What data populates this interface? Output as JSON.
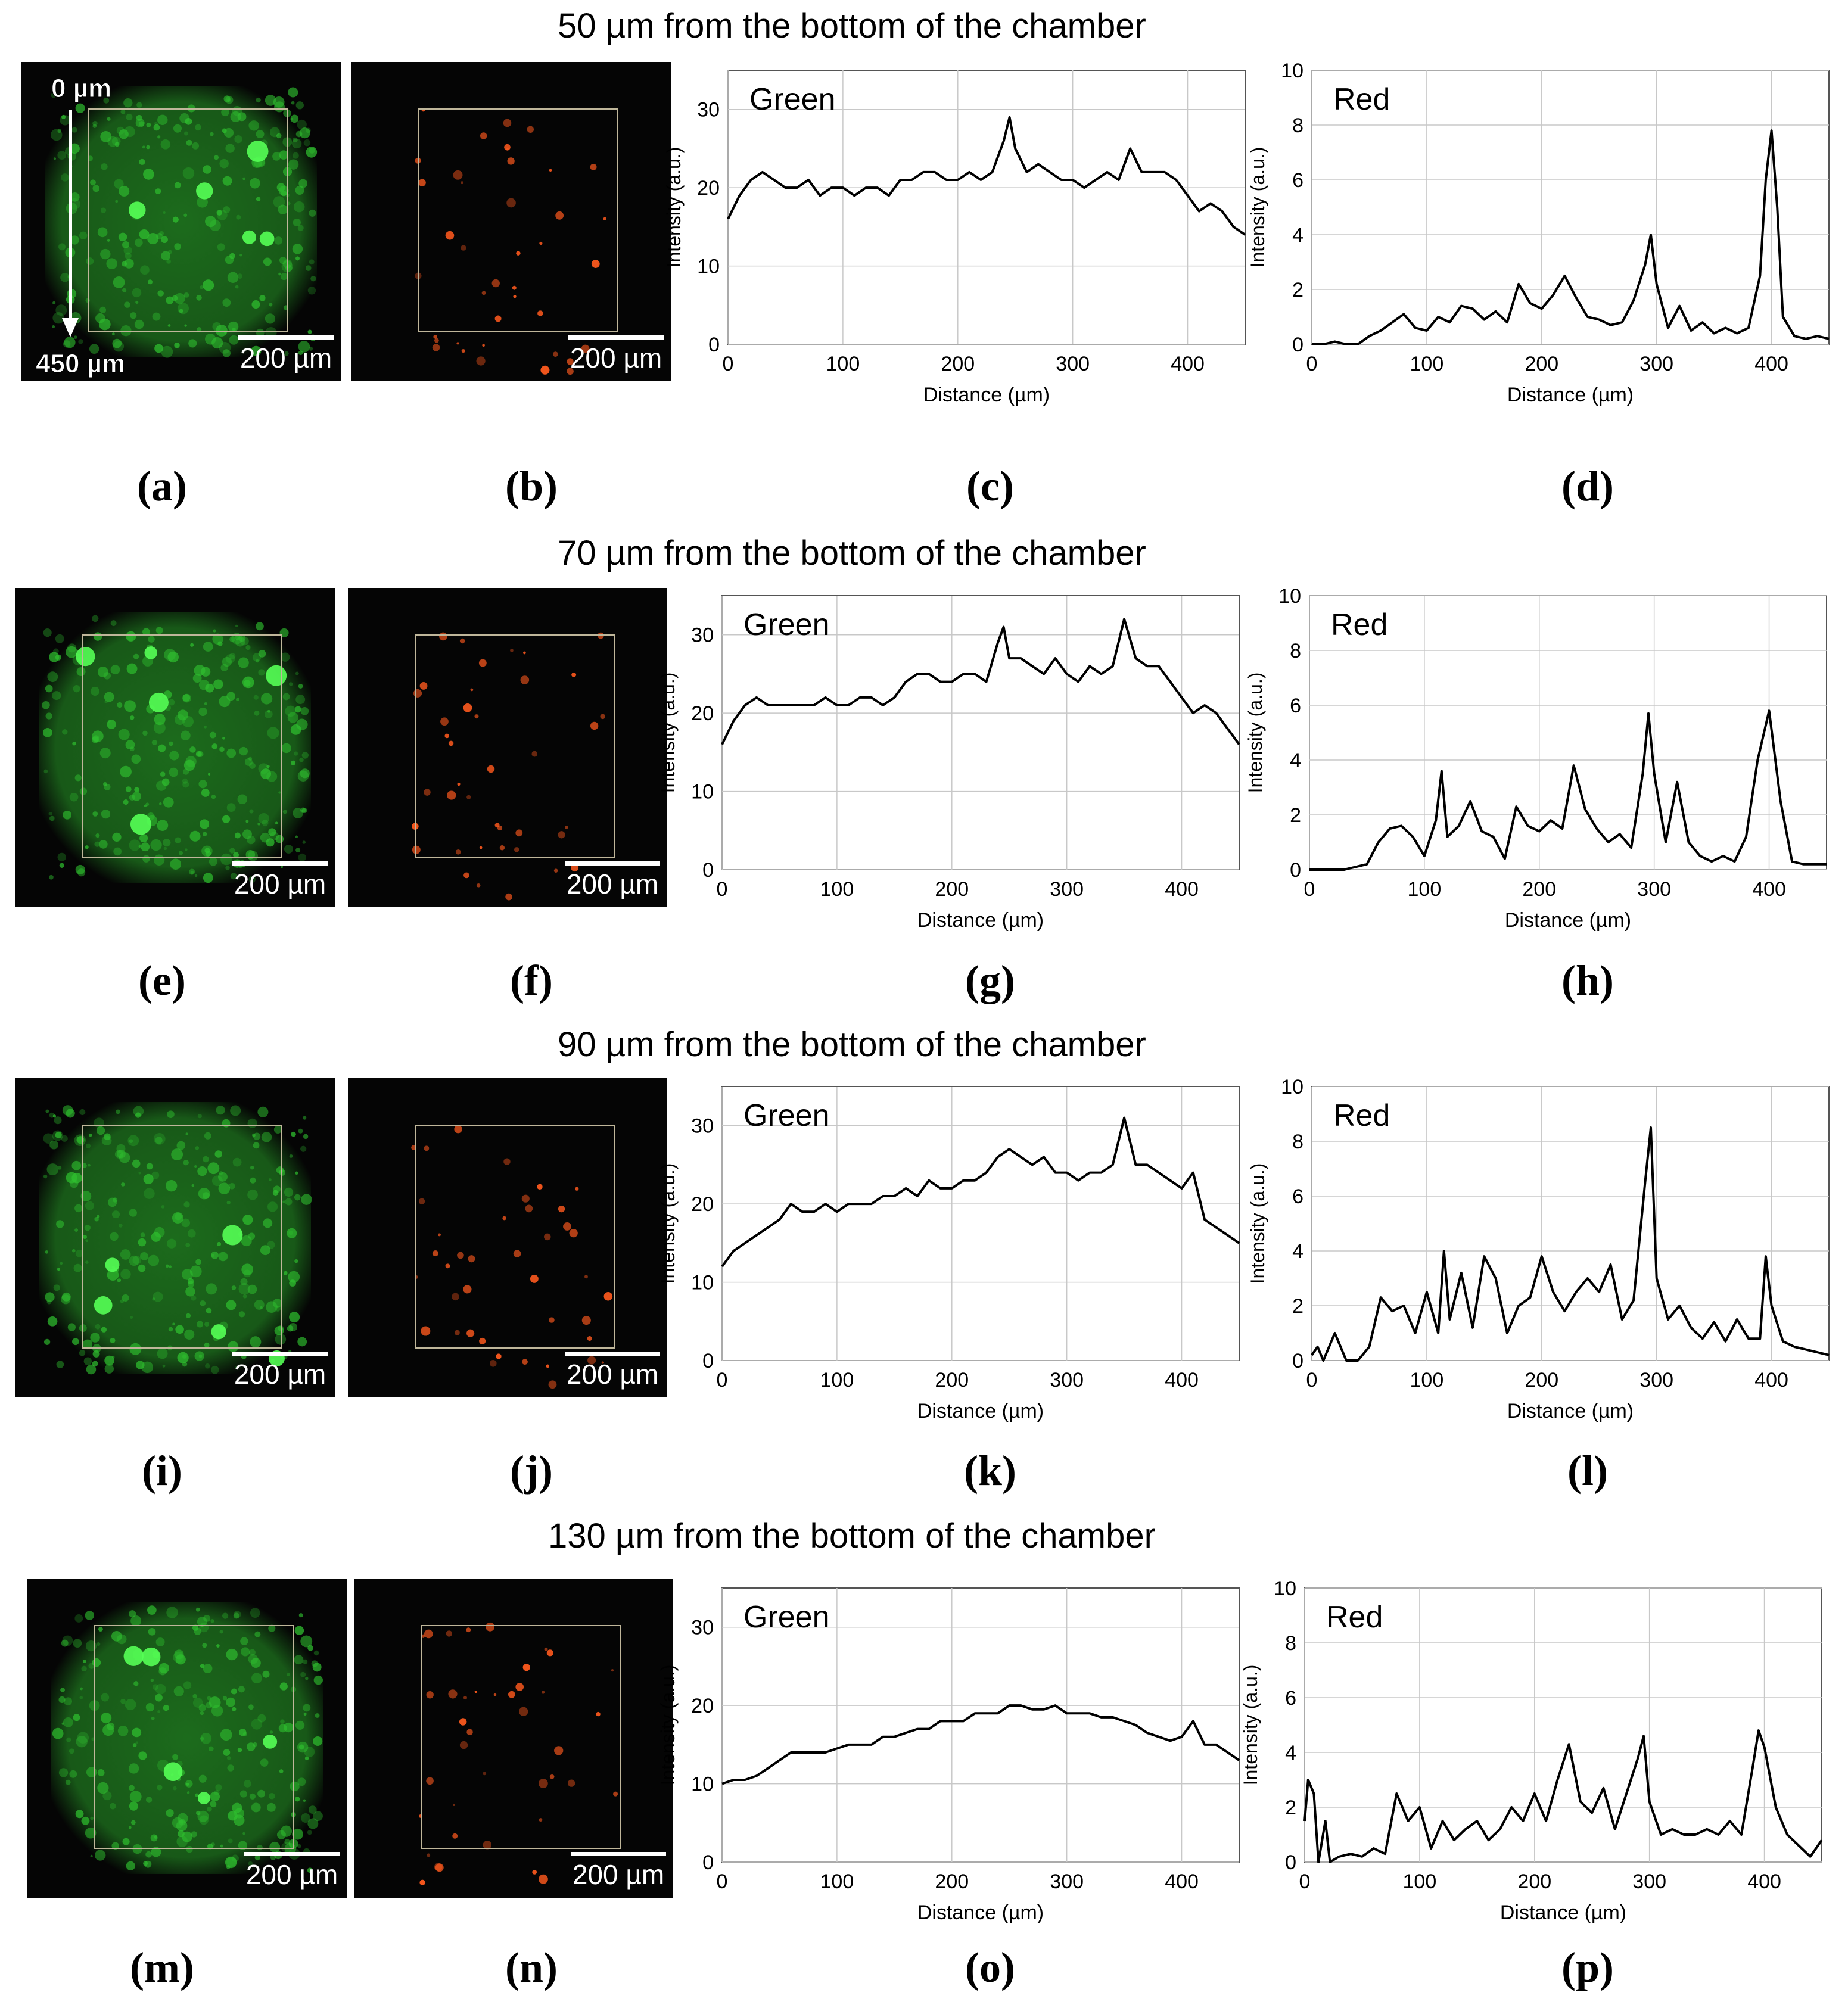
{
  "figure": {
    "rows": [
      {
        "title": "50 µm from the bottom of the chamber",
        "labels": [
          "(a)",
          "(b)",
          "(c)",
          "(d)"
        ],
        "scale_green": "200 µm",
        "scale_red": "200 µm",
        "depth_top": "0 µm",
        "depth_bottom": "450 µm"
      },
      {
        "title": "70 µm from the bottom of the chamber",
        "labels": [
          "(e)",
          "(f)",
          "(g)",
          "(h)"
        ],
        "scale_green": "200 µm",
        "scale_red": "200 µm"
      },
      {
        "title": "90 µm from the bottom of the chamber",
        "labels": [
          "(i)",
          "(j)",
          "(k)",
          "(l)"
        ],
        "scale_green": "200 µm",
        "scale_red": "200 µm"
      },
      {
        "title": "130 µm from the bottom of the chamber",
        "labels": [
          "(m)",
          "(n)",
          "(o)",
          "(p)"
        ],
        "scale_green": "200 µm",
        "scale_red": "200 µm"
      }
    ]
  },
  "colors": {
    "green_channel": "#2fbf2f",
    "red_channel": "#ff5a1e",
    "roi_box": "#bfb69a",
    "trace": "#000000",
    "grid": "#c8c8c8"
  },
  "chart_data": [
    {
      "panel": "(c)",
      "type": "line",
      "title": "Green",
      "xlabel": "Distance (µm)",
      "ylabel": "Intensity (a.u.)",
      "xlim": [
        0,
        450
      ],
      "ylim": [
        0,
        35
      ],
      "xticks": [
        0,
        100,
        200,
        300,
        400
      ],
      "yticks": [
        0,
        10,
        20,
        30
      ],
      "grid": true,
      "series": [
        {
          "name": "Green",
          "x": [
            0,
            10,
            20,
            30,
            40,
            50,
            60,
            70,
            80,
            90,
            100,
            110,
            120,
            130,
            140,
            150,
            160,
            170,
            180,
            190,
            200,
            210,
            220,
            230,
            240,
            245,
            250,
            260,
            270,
            280,
            290,
            300,
            310,
            320,
            330,
            340,
            350,
            360,
            370,
            380,
            390,
            400,
            410,
            420,
            430,
            440,
            450
          ],
          "values": [
            16,
            19,
            21,
            22,
            21,
            20,
            20,
            21,
            19,
            20,
            20,
            19,
            20,
            20,
            19,
            21,
            21,
            22,
            22,
            21,
            21,
            22,
            21,
            22,
            26,
            29,
            25,
            22,
            23,
            22,
            21,
            21,
            20,
            21,
            22,
            21,
            25,
            22,
            22,
            22,
            21,
            19,
            17,
            18,
            17,
            15,
            14
          ]
        }
      ]
    },
    {
      "panel": "(d)",
      "type": "line",
      "title": "Red",
      "xlabel": "Distance (µm)",
      "ylabel": "Intensity (a.u.)",
      "xlim": [
        0,
        450
      ],
      "ylim": [
        0,
        10
      ],
      "xticks": [
        0,
        100,
        200,
        300,
        400
      ],
      "yticks": [
        0,
        2,
        4,
        6,
        8,
        10
      ],
      "grid": true,
      "series": [
        {
          "name": "Red",
          "x": [
            0,
            10,
            20,
            30,
            40,
            50,
            60,
            70,
            80,
            90,
            100,
            110,
            120,
            130,
            140,
            150,
            160,
            170,
            180,
            190,
            200,
            210,
            220,
            230,
            240,
            250,
            260,
            270,
            280,
            290,
            295,
            300,
            310,
            320,
            330,
            340,
            350,
            360,
            370,
            380,
            390,
            395,
            400,
            405,
            410,
            420,
            430,
            440,
            450
          ],
          "values": [
            0,
            0,
            0.1,
            0,
            0,
            0.3,
            0.5,
            0.8,
            1.1,
            0.6,
            0.5,
            1,
            0.8,
            1.4,
            1.3,
            0.9,
            1.2,
            0.8,
            2.2,
            1.5,
            1.3,
            1.8,
            2.5,
            1.7,
            1,
            0.9,
            0.7,
            0.8,
            1.6,
            2.9,
            4,
            2.2,
            0.6,
            1.4,
            0.5,
            0.8,
            0.4,
            0.6,
            0.4,
            0.6,
            2.5,
            6,
            7.8,
            5,
            1,
            0.3,
            0.2,
            0.3,
            0.2
          ]
        }
      ]
    },
    {
      "panel": "(g)",
      "type": "line",
      "title": "Green",
      "xlabel": "Distance (µm)",
      "ylabel": "Intensity (a.u.)",
      "xlim": [
        0,
        450
      ],
      "ylim": [
        0,
        35
      ],
      "xticks": [
        0,
        100,
        200,
        300,
        400
      ],
      "yticks": [
        0,
        10,
        20,
        30
      ],
      "grid": true,
      "series": [
        {
          "name": "Green",
          "x": [
            0,
            10,
            20,
            30,
            40,
            50,
            60,
            70,
            80,
            90,
            100,
            110,
            120,
            130,
            140,
            150,
            160,
            170,
            180,
            190,
            200,
            210,
            220,
            230,
            240,
            245,
            250,
            260,
            270,
            280,
            290,
            300,
            310,
            320,
            330,
            340,
            350,
            360,
            370,
            380,
            390,
            400,
            410,
            420,
            430,
            440,
            450
          ],
          "values": [
            16,
            19,
            21,
            22,
            21,
            21,
            21,
            21,
            21,
            22,
            21,
            21,
            22,
            22,
            21,
            22,
            24,
            25,
            25,
            24,
            24,
            25,
            25,
            24,
            29,
            31,
            27,
            27,
            26,
            25,
            27,
            25,
            24,
            26,
            25,
            26,
            32,
            27,
            26,
            26,
            24,
            22,
            20,
            21,
            20,
            18,
            16
          ]
        }
      ]
    },
    {
      "panel": "(h)",
      "type": "line",
      "title": "Red",
      "xlabel": "Distance (µm)",
      "ylabel": "Intensity (a.u.)",
      "xlim": [
        0,
        450
      ],
      "ylim": [
        0,
        10
      ],
      "xticks": [
        0,
        100,
        200,
        300,
        400
      ],
      "yticks": [
        0,
        2,
        4,
        6,
        8,
        10
      ],
      "grid": true,
      "series": [
        {
          "name": "Red",
          "x": [
            0,
            10,
            20,
            30,
            40,
            50,
            60,
            70,
            80,
            90,
            100,
            110,
            115,
            120,
            130,
            140,
            150,
            160,
            170,
            180,
            190,
            200,
            210,
            220,
            230,
            240,
            250,
            260,
            270,
            280,
            290,
            295,
            300,
            310,
            320,
            330,
            340,
            350,
            360,
            370,
            380,
            390,
            400,
            410,
            420,
            430,
            440,
            450
          ],
          "values": [
            0,
            0,
            0,
            0,
            0.1,
            0.2,
            1,
            1.5,
            1.6,
            1.2,
            0.5,
            1.8,
            3.6,
            1.2,
            1.6,
            2.5,
            1.4,
            1.2,
            0.4,
            2.3,
            1.6,
            1.4,
            1.8,
            1.5,
            3.8,
            2.2,
            1.5,
            1,
            1.3,
            0.8,
            3.5,
            5.7,
            3.5,
            1,
            3.2,
            1,
            0.5,
            0.3,
            0.5,
            0.3,
            1.2,
            4,
            5.8,
            2.5,
            0.3,
            0.2,
            0.2,
            0.2
          ]
        }
      ]
    },
    {
      "panel": "(k)",
      "type": "line",
      "title": "Green",
      "xlabel": "Distance (µm)",
      "ylabel": "Intensity (a.u.)",
      "xlim": [
        0,
        450
      ],
      "ylim": [
        0,
        35
      ],
      "xticks": [
        0,
        100,
        200,
        300,
        400
      ],
      "yticks": [
        0,
        10,
        20,
        30
      ],
      "grid": true,
      "series": [
        {
          "name": "Green",
          "x": [
            0,
            10,
            20,
            30,
            40,
            50,
            60,
            70,
            80,
            90,
            100,
            110,
            120,
            130,
            140,
            150,
            160,
            170,
            180,
            190,
            200,
            210,
            220,
            230,
            240,
            250,
            260,
            270,
            280,
            290,
            300,
            310,
            320,
            330,
            340,
            350,
            360,
            370,
            380,
            390,
            400,
            410,
            420,
            430,
            440,
            450
          ],
          "values": [
            12,
            14,
            15,
            16,
            17,
            18,
            20,
            19,
            19,
            20,
            19,
            20,
            20,
            20,
            21,
            21,
            22,
            21,
            23,
            22,
            22,
            23,
            23,
            24,
            26,
            27,
            26,
            25,
            26,
            24,
            24,
            23,
            24,
            24,
            25,
            31,
            25,
            25,
            24,
            23,
            22,
            24,
            18,
            17,
            16,
            15
          ]
        }
      ]
    },
    {
      "panel": "(l)",
      "type": "line",
      "title": "Red",
      "xlabel": "Distance (µm)",
      "ylabel": "Intensity (a.u.)",
      "xlim": [
        0,
        450
      ],
      "ylim": [
        0,
        10
      ],
      "xticks": [
        0,
        100,
        200,
        300,
        400
      ],
      "yticks": [
        0,
        2,
        4,
        6,
        8,
        10
      ],
      "grid": true,
      "series": [
        {
          "name": "Red",
          "x": [
            0,
            5,
            10,
            20,
            30,
            40,
            50,
            60,
            70,
            80,
            90,
            100,
            110,
            115,
            120,
            130,
            140,
            150,
            160,
            170,
            180,
            190,
            200,
            210,
            220,
            230,
            240,
            250,
            260,
            270,
            280,
            290,
            295,
            300,
            310,
            320,
            330,
            340,
            350,
            360,
            370,
            380,
            390,
            395,
            400,
            410,
            420,
            430,
            440,
            450
          ],
          "values": [
            0.2,
            0.5,
            0,
            1,
            0,
            0,
            0.5,
            2.3,
            1.8,
            2,
            1,
            2.5,
            1,
            4,
            1.5,
            3.2,
            1.2,
            3.8,
            3,
            1,
            2,
            2.3,
            3.8,
            2.5,
            1.8,
            2.5,
            3,
            2.5,
            3.5,
            1.5,
            2.2,
            6.5,
            8.5,
            3,
            1.5,
            2,
            1.2,
            0.8,
            1.4,
            0.7,
            1.5,
            0.8,
            0.8,
            3.8,
            2,
            0.7,
            0.5,
            0.4,
            0.3,
            0.2
          ]
        }
      ]
    },
    {
      "panel": "(o)",
      "type": "line",
      "title": "Green",
      "xlabel": "Distance (µm)",
      "ylabel": "Intensity (a.u.)",
      "xlim": [
        0,
        450
      ],
      "ylim": [
        0,
        35
      ],
      "xticks": [
        0,
        100,
        200,
        300,
        400
      ],
      "yticks": [
        0,
        10,
        20,
        30
      ],
      "grid": true,
      "series": [
        {
          "name": "Green",
          "x": [
            0,
            10,
            20,
            30,
            40,
            50,
            60,
            70,
            80,
            90,
            100,
            110,
            120,
            130,
            140,
            150,
            160,
            170,
            180,
            190,
            200,
            210,
            220,
            230,
            240,
            250,
            260,
            270,
            280,
            290,
            300,
            310,
            320,
            330,
            340,
            350,
            360,
            370,
            380,
            390,
            400,
            410,
            420,
            430,
            440,
            450
          ],
          "values": [
            10,
            10.5,
            10.5,
            11,
            12,
            13,
            14,
            14,
            14,
            14,
            14.5,
            15,
            15,
            15,
            16,
            16,
            16.5,
            17,
            17,
            18,
            18,
            18,
            19,
            19,
            19,
            20,
            20,
            19.5,
            19.5,
            20,
            19,
            19,
            19,
            18.5,
            18.5,
            18,
            17.5,
            16.5,
            16,
            15.5,
            16,
            18,
            15,
            15,
            14,
            13
          ]
        }
      ]
    },
    {
      "panel": "(p)",
      "type": "line",
      "title": "Red",
      "xlabel": "Distance (µm)",
      "ylabel": "Intensity (a.u.)",
      "xlim": [
        0,
        450
      ],
      "ylim": [
        0,
        10
      ],
      "xticks": [
        0,
        100,
        200,
        300,
        400
      ],
      "yticks": [
        0,
        2,
        4,
        6,
        8,
        10
      ],
      "grid": true,
      "series": [
        {
          "name": "Red",
          "x": [
            0,
            3,
            8,
            12,
            18,
            22,
            30,
            40,
            50,
            60,
            70,
            80,
            90,
            100,
            110,
            120,
            130,
            140,
            150,
            160,
            170,
            180,
            190,
            200,
            210,
            220,
            230,
            240,
            250,
            260,
            270,
            280,
            290,
            295,
            300,
            310,
            320,
            330,
            340,
            350,
            360,
            370,
            380,
            390,
            395,
            400,
            410,
            420,
            430,
            440,
            450
          ],
          "values": [
            1.5,
            3,
            2.5,
            0,
            1.5,
            0,
            0.2,
            0.3,
            0.2,
            0.5,
            0.3,
            2.5,
            1.5,
            2,
            0.5,
            1.5,
            0.8,
            1.2,
            1.5,
            0.8,
            1.2,
            2,
            1.5,
            2.5,
            1.5,
            3,
            4.3,
            2.2,
            1.8,
            2.7,
            1.2,
            2.5,
            3.8,
            4.6,
            2.2,
            1,
            1.2,
            1,
            1,
            1.2,
            1,
            1.5,
            1,
            3.5,
            4.8,
            4.2,
            2,
            1,
            0.6,
            0.2,
            0.8
          ]
        }
      ]
    }
  ]
}
